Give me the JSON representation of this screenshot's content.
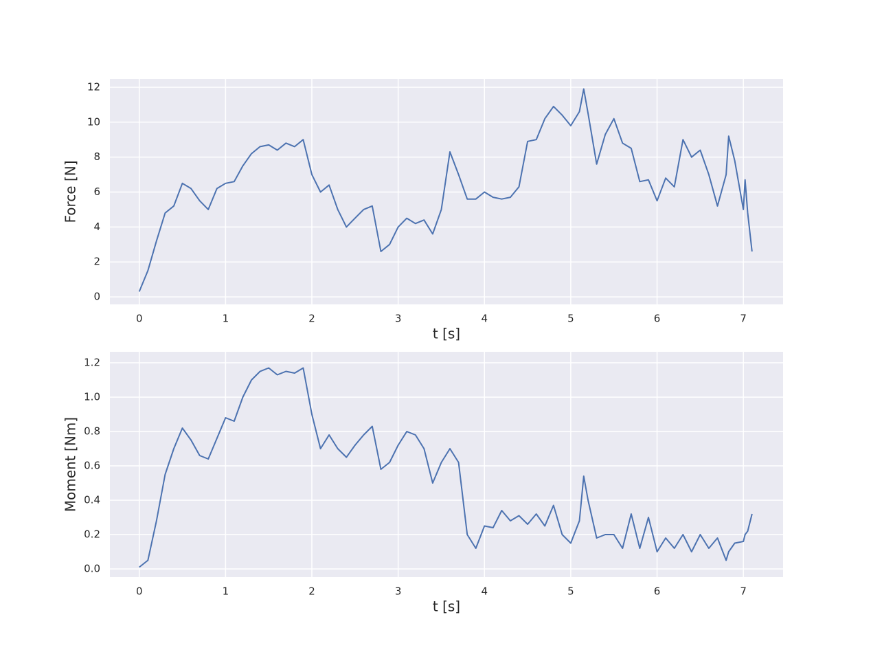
{
  "chart_data": [
    {
      "type": "line",
      "xlabel": "t [s]",
      "ylabel": "Force [N]",
      "color": "#4c72b0",
      "grid": true,
      "x": [
        0,
        0.1,
        0.2,
        0.3,
        0.4,
        0.5,
        0.6,
        0.7,
        0.8,
        0.9,
        1.0,
        1.1,
        1.2,
        1.3,
        1.4,
        1.5,
        1.6,
        1.7,
        1.8,
        1.9,
        2.0,
        2.1,
        2.2,
        2.3,
        2.4,
        2.5,
        2.6,
        2.7,
        2.8,
        2.9,
        3.0,
        3.1,
        3.2,
        3.3,
        3.4,
        3.5,
        3.6,
        3.7,
        3.8,
        3.9,
        4.0,
        4.1,
        4.2,
        4.3,
        4.4,
        4.5,
        4.6,
        4.7,
        4.8,
        4.9,
        5.0,
        5.1,
        5.15,
        5.2,
        5.3,
        5.4,
        5.5,
        5.6,
        5.7,
        5.8,
        5.9,
        6.0,
        6.1,
        6.2,
        6.3,
        6.4,
        6.5,
        6.6,
        6.7,
        6.8,
        6.83,
        6.9,
        7.0,
        7.02,
        7.05,
        7.1
      ],
      "values": [
        0.3,
        1.5,
        3.2,
        4.8,
        5.2,
        6.5,
        6.2,
        5.5,
        5.0,
        6.2,
        6.5,
        6.6,
        7.5,
        8.2,
        8.6,
        8.7,
        8.4,
        8.8,
        8.6,
        9.0,
        7.0,
        6.0,
        6.4,
        5.0,
        4.0,
        4.5,
        5.0,
        5.2,
        2.6,
        3.0,
        4.0,
        4.5,
        4.2,
        4.4,
        3.6,
        5.0,
        8.3,
        7.0,
        5.6,
        5.6,
        6.0,
        5.7,
        5.6,
        5.7,
        6.3,
        8.9,
        9.0,
        10.2,
        10.9,
        10.4,
        9.8,
        10.6,
        11.9,
        10.5,
        7.6,
        9.3,
        10.2,
        8.8,
        8.5,
        6.6,
        6.7,
        5.5,
        6.8,
        6.3,
        9.0,
        8.0,
        8.4,
        7.0,
        5.2,
        7.0,
        9.2,
        7.8,
        5.0,
        6.7,
        4.8,
        2.6
      ],
      "xlim": [
        -0.34,
        7.46
      ],
      "xticks": [
        0,
        1,
        2,
        3,
        4,
        5,
        6,
        7
      ],
      "ylim": [
        -0.43,
        12.47
      ],
      "yticks": [
        0,
        2,
        4,
        6,
        8,
        10,
        12
      ]
    },
    {
      "type": "line",
      "xlabel": "t [s]",
      "ylabel": "Moment [Nm]",
      "color": "#4c72b0",
      "grid": true,
      "x": [
        0,
        0.1,
        0.2,
        0.3,
        0.4,
        0.5,
        0.6,
        0.7,
        0.8,
        0.9,
        1.0,
        1.1,
        1.2,
        1.3,
        1.4,
        1.5,
        1.6,
        1.7,
        1.8,
        1.9,
        2.0,
        2.1,
        2.2,
        2.3,
        2.4,
        2.5,
        2.6,
        2.7,
        2.8,
        2.9,
        3.0,
        3.1,
        3.2,
        3.3,
        3.4,
        3.5,
        3.6,
        3.7,
        3.8,
        3.9,
        4.0,
        4.1,
        4.2,
        4.3,
        4.4,
        4.5,
        4.6,
        4.7,
        4.8,
        4.9,
        5.0,
        5.1,
        5.15,
        5.2,
        5.3,
        5.4,
        5.5,
        5.6,
        5.7,
        5.8,
        5.9,
        6.0,
        6.1,
        6.2,
        6.3,
        6.4,
        6.5,
        6.6,
        6.7,
        6.8,
        6.83,
        6.9,
        7.0,
        7.02,
        7.05,
        7.1
      ],
      "values": [
        0.01,
        0.05,
        0.28,
        0.55,
        0.7,
        0.82,
        0.75,
        0.66,
        0.64,
        0.76,
        0.88,
        0.86,
        1.0,
        1.1,
        1.15,
        1.17,
        1.13,
        1.15,
        1.14,
        1.17,
        0.9,
        0.7,
        0.78,
        0.7,
        0.65,
        0.72,
        0.78,
        0.83,
        0.58,
        0.62,
        0.72,
        0.8,
        0.78,
        0.7,
        0.5,
        0.62,
        0.7,
        0.62,
        0.2,
        0.12,
        0.25,
        0.24,
        0.34,
        0.28,
        0.31,
        0.26,
        0.32,
        0.25,
        0.37,
        0.2,
        0.15,
        0.28,
        0.54,
        0.4,
        0.18,
        0.2,
        0.2,
        0.12,
        0.32,
        0.12,
        0.3,
        0.1,
        0.18,
        0.12,
        0.2,
        0.1,
        0.2,
        0.12,
        0.18,
        0.05,
        0.1,
        0.15,
        0.16,
        0.2,
        0.22,
        0.32
      ],
      "xlim": [
        -0.34,
        7.46
      ],
      "xticks": [
        0,
        1,
        2,
        3,
        4,
        5,
        6,
        7
      ],
      "ylim": [
        -0.048,
        1.264
      ],
      "yticks": [
        {
          "value": 0,
          "label": "0.0"
        },
        {
          "value": 0.2,
          "label": "0.2"
        },
        {
          "value": 0.4,
          "label": "0.4"
        },
        {
          "value": 0.6,
          "label": "0.6"
        },
        {
          "value": 0.8,
          "label": "0.8"
        },
        {
          "value": 1.0,
          "label": "1.0"
        },
        {
          "value": 1.2,
          "label": "1.2"
        }
      ]
    }
  ]
}
